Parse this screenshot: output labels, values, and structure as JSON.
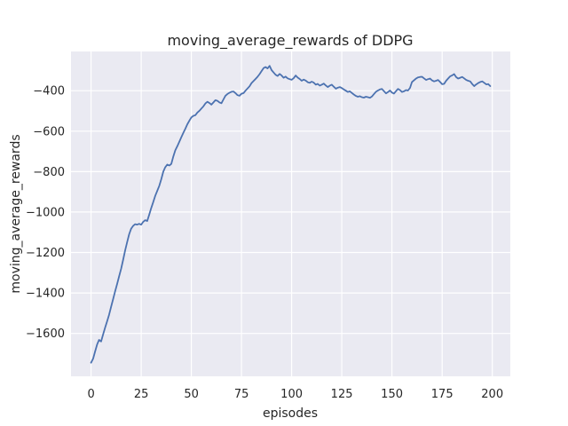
{
  "figure": {
    "kind": "matplotlib-seaborn-figure",
    "background": "#ffffff"
  },
  "chart_data": {
    "type": "line",
    "title": "moving_average_rewards of DDPG",
    "xlabel": "episodes",
    "ylabel": "moving_average_rewards",
    "grid": true,
    "legend": false,
    "xlim": [
      -10,
      209
    ],
    "ylim": [
      -1812,
      -206
    ],
    "xticks": [
      0,
      25,
      50,
      75,
      100,
      125,
      150,
      175,
      200
    ],
    "xtick_labels": [
      "0",
      "25",
      "50",
      "75",
      "100",
      "125",
      "150",
      "175",
      "200"
    ],
    "yticks": [
      -1600,
      -1400,
      -1200,
      -1000,
      -800,
      -600,
      -400
    ],
    "ytick_labels": [
      "−1600",
      "−1400",
      "−1200",
      "−1000",
      "−800",
      "−600",
      "−400"
    ],
    "style": {
      "axes_background": "#eaeaf2",
      "grid_color": "#ffffff",
      "text_color": "#262626",
      "line_color": "#4c72b0",
      "line_width": 1.8
    },
    "episodes": {
      "start": 0,
      "step": 1,
      "count": 200
    },
    "series": [
      {
        "name": "moving_average_rewards",
        "color": "#4c72b0",
        "values": [
          -1745,
          -1725,
          -1690,
          -1655,
          -1632,
          -1640,
          -1605,
          -1572,
          -1540,
          -1508,
          -1468,
          -1430,
          -1392,
          -1355,
          -1318,
          -1280,
          -1235,
          -1190,
          -1148,
          -1110,
          -1082,
          -1068,
          -1060,
          -1062,
          -1058,
          -1062,
          -1048,
          -1040,
          -1044,
          -1012,
          -980,
          -950,
          -920,
          -895,
          -870,
          -838,
          -800,
          -778,
          -765,
          -770,
          -762,
          -725,
          -695,
          -674,
          -652,
          -630,
          -608,
          -588,
          -566,
          -548,
          -532,
          -524,
          -521,
          -508,
          -499,
          -488,
          -477,
          -463,
          -455,
          -461,
          -469,
          -458,
          -447,
          -450,
          -458,
          -462,
          -443,
          -425,
          -416,
          -410,
          -405,
          -404,
          -412,
          -422,
          -425,
          -415,
          -412,
          -400,
          -389,
          -378,
          -362,
          -352,
          -342,
          -331,
          -318,
          -303,
          -288,
          -283,
          -290,
          -277,
          -298,
          -310,
          -321,
          -327,
          -317,
          -325,
          -336,
          -330,
          -339,
          -343,
          -346,
          -338,
          -325,
          -335,
          -342,
          -351,
          -345,
          -350,
          -358,
          -361,
          -355,
          -360,
          -370,
          -366,
          -375,
          -370,
          -365,
          -374,
          -382,
          -375,
          -370,
          -380,
          -390,
          -385,
          -382,
          -387,
          -394,
          -400,
          -406,
          -403,
          -411,
          -419,
          -426,
          -430,
          -427,
          -432,
          -434,
          -430,
          -432,
          -435,
          -429,
          -417,
          -405,
          -399,
          -394,
          -391,
          -402,
          -413,
          -407,
          -399,
          -409,
          -414,
          -402,
          -391,
          -397,
          -406,
          -403,
          -397,
          -399,
          -386,
          -357,
          -348,
          -340,
          -334,
          -332,
          -331,
          -339,
          -347,
          -343,
          -340,
          -349,
          -354,
          -351,
          -347,
          -357,
          -368,
          -366,
          -351,
          -340,
          -329,
          -324,
          -318,
          -333,
          -340,
          -336,
          -332,
          -339,
          -347,
          -351,
          -354,
          -367,
          -377,
          -369,
          -362,
          -357,
          -354,
          -361,
          -369,
          -367,
          -377
        ]
      }
    ]
  }
}
